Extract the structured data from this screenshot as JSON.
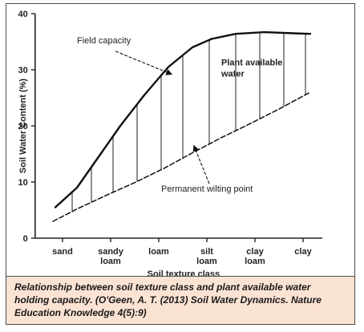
{
  "chart_data": {
    "type": "line",
    "ylabel": "Soil Water Content (%)",
    "xlabel": "Soil texture class",
    "ylim": [
      0,
      40
    ],
    "yticks": [
      0,
      10,
      20,
      30,
      40
    ],
    "categories": [
      {
        "lines": [
          "sand"
        ],
        "x": 0
      },
      {
        "lines": [
          "sandy",
          "loam"
        ],
        "x": 1
      },
      {
        "lines": [
          "loam"
        ],
        "x": 2
      },
      {
        "lines": [
          "silt",
          "loam"
        ],
        "x": 3
      },
      {
        "lines": [
          "clay",
          "loam"
        ],
        "x": 4
      },
      {
        "lines": [
          "clay"
        ],
        "x": 5
      }
    ],
    "series": [
      {
        "name": "Field capacity",
        "style": "solid",
        "points": [
          [
            -0.15,
            5.5
          ],
          [
            0.3,
            9
          ],
          [
            0.75,
            14.5
          ],
          [
            1.2,
            20
          ],
          [
            1.7,
            25.5
          ],
          [
            2.2,
            30.5
          ],
          [
            2.7,
            34
          ],
          [
            3.1,
            35.5
          ],
          [
            3.6,
            36.4
          ],
          [
            4.2,
            36.7
          ],
          [
            4.8,
            36.5
          ],
          [
            5.15,
            36.4
          ]
        ]
      },
      {
        "name": "Permanent wilting point",
        "style": "dashed",
        "points": [
          [
            -0.2,
            3
          ],
          [
            0.3,
            5.2
          ],
          [
            0.9,
            7.6
          ],
          [
            1.5,
            9.9
          ],
          [
            2.1,
            12.4
          ],
          [
            2.7,
            15.2
          ],
          [
            3.3,
            17.9
          ],
          [
            3.9,
            20.4
          ],
          [
            4.5,
            23
          ],
          [
            5.15,
            26
          ]
        ]
      }
    ],
    "fill_hatch_x": [
      0.2,
      0.6,
      1.05,
      1.55,
      2.05,
      2.5,
      3.05,
      3.6,
      4.1,
      4.6,
      5.05
    ],
    "annotations": [
      {
        "text": "Field capacity",
        "bold": false,
        "x": 0.3,
        "y": 34.7
      },
      {
        "text": "Plant available",
        "bold": true,
        "x": 3.3,
        "y": 30.8
      },
      {
        "text": "water",
        "bold": true,
        "x": 3.3,
        "y": 28.8
      },
      {
        "text": "Permanent wilting point",
        "bold": false,
        "x": 2.05,
        "y": 8.3
      }
    ],
    "arrows": [
      {
        "from": [
          1.1,
          33.3
        ],
        "to": [
          2.27,
          29.2
        ]
      },
      {
        "from": [
          3.05,
          9.7
        ],
        "to": [
          2.73,
          16.5
        ]
      }
    ]
  },
  "caption": {
    "text": "Relationship between soil texture class and plant available water holding capacity. (O'Geen, A. T. (2013) Soil Water Dynamics. Nature Education Knowledge 4(5):9)"
  }
}
